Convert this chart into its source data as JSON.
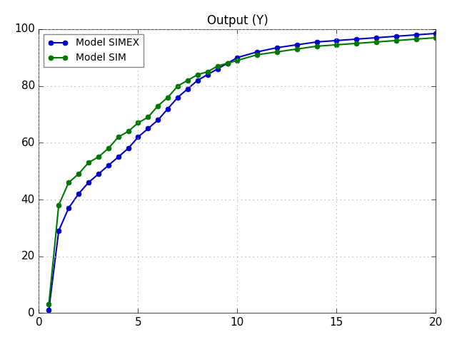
{
  "title": "Output (Y)",
  "simex_x": [
    0.5,
    1,
    1.5,
    2,
    2.5,
    3,
    3.5,
    4,
    4.5,
    5,
    5.5,
    6,
    6.5,
    7,
    7.5,
    8,
    8.5,
    9,
    9.5,
    10,
    11,
    12,
    13,
    14,
    15,
    16,
    17,
    18,
    19,
    20
  ],
  "simex_y": [
    1,
    29,
    37,
    42,
    46,
    49,
    52,
    55,
    58,
    62,
    65,
    68,
    72,
    76,
    79,
    82,
    84,
    86,
    88,
    90,
    92,
    93.5,
    94.5,
    95.5,
    96,
    96.5,
    97,
    97.5,
    98,
    98.5
  ],
  "sim_x": [
    0.5,
    1,
    1.5,
    2,
    2.5,
    3,
    3.5,
    4,
    4.5,
    5,
    5.5,
    6,
    6.5,
    7,
    7.5,
    8,
    8.5,
    9,
    9.5,
    10,
    11,
    12,
    13,
    14,
    15,
    16,
    17,
    18,
    19,
    20
  ],
  "sim_y": [
    3,
    38,
    46,
    49,
    53,
    55,
    58,
    62,
    64,
    67,
    69,
    73,
    76,
    80,
    82,
    84,
    85,
    87,
    88,
    89,
    91,
    92,
    93,
    94,
    94.5,
    95,
    95.5,
    96,
    96.5,
    97
  ],
  "simex_color": "#0000cc",
  "sim_color": "#007700",
  "simex_label": "Model SIMEX",
  "sim_label": "Model SIM",
  "xlim": [
    0,
    20
  ],
  "ylim": [
    0,
    100
  ],
  "xticks": [
    0,
    5,
    10,
    15,
    20
  ],
  "yticks": [
    0,
    20,
    40,
    60,
    80,
    100
  ],
  "figure_facecolor": "#e8e8e8",
  "axes_facecolor": "#ffffff",
  "grid_color": "#b0b0b0",
  "grid_linestyle": "dotted",
  "figsize": [
    6.4,
    4.8
  ],
  "dpi": 100,
  "marker": "o",
  "markersize": 5,
  "linewidth": 1.5,
  "title_fontsize": 12,
  "tick_fontsize": 11,
  "legend_fontsize": 10
}
